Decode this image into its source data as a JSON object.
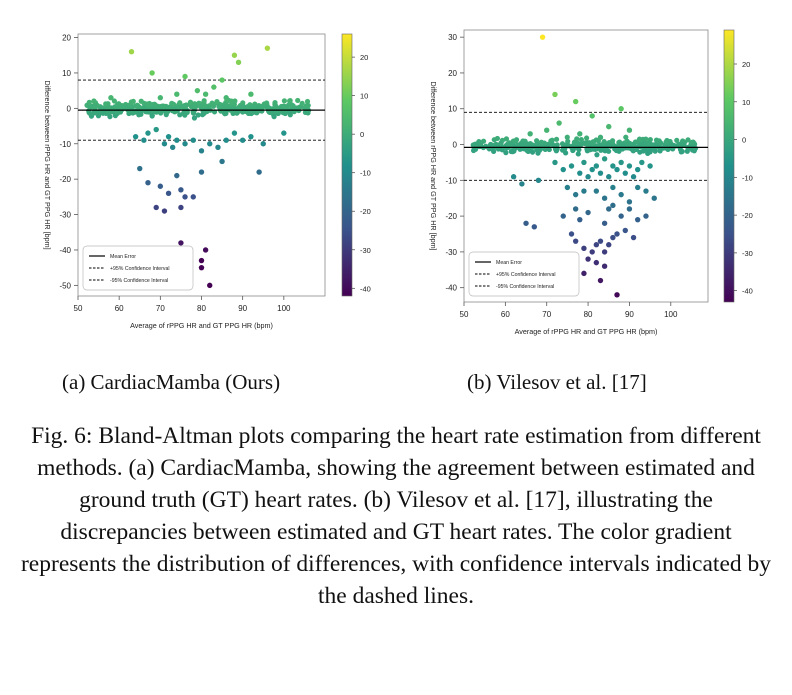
{
  "figure": {
    "caption": "Fig. 6: Bland-Altman plots comparing the heart rate estimation from different methods. (a) CardiacMamba, showing the agreement between estimated and ground truth (GT) heart rates. (b) Vilesov et al. [17], illustrating the discrepancies between estimated and GT heart rates. The color gradient represents the distribution of differences, with confidence intervals indicated by the dashed lines.",
    "subcaptions": [
      "(a) CardiacMamba (Ours)",
      "(b) Vilesov et al. [17]"
    ],
    "colormap": [
      "#440154",
      "#3b528b",
      "#21918c",
      "#5ec962",
      "#fde725"
    ]
  },
  "chart_data": [
    {
      "type": "scatter",
      "title": "",
      "xlabel": "Average of rPPG HR and  GT PPG HR (bpm)",
      "ylabel": "Difference between rPPG HR and GT PPG HR [bpm]",
      "xlim": [
        50,
        110
      ],
      "ylim": [
        -53,
        21
      ],
      "xticks": [
        50,
        60,
        70,
        80,
        90,
        100
      ],
      "yticks": [
        20,
        10,
        0,
        -10,
        -20,
        -30,
        -40,
        -50
      ],
      "mean_error": -0.5,
      "upper_ci": 8,
      "lower_ci": -9,
      "colorbar": {
        "range": [
          -42,
          26
        ],
        "ticks": [
          20,
          10,
          0,
          -10,
          -20,
          -30,
          -40
        ]
      },
      "legend": {
        "position": "bottom-left",
        "entries": [
          "Mean Error",
          "+95% Confidence Interval",
          "-95% Confidence Interval"
        ]
      },
      "cluster": {
        "count": 420,
        "x_range": [
          52,
          106
        ],
        "spread": 1.3
      },
      "points": [
        [
          63,
          16
        ],
        [
          68,
          10
        ],
        [
          76,
          9
        ],
        [
          88,
          15
        ],
        [
          89,
          13
        ],
        [
          96,
          17
        ],
        [
          85,
          8
        ],
        [
          79,
          5
        ],
        [
          81,
          4
        ],
        [
          83,
          6
        ],
        [
          86,
          3
        ],
        [
          92,
          4
        ],
        [
          74,
          4
        ],
        [
          70,
          3
        ],
        [
          58,
          3
        ],
        [
          64,
          -8
        ],
        [
          66,
          -9
        ],
        [
          67,
          -7
        ],
        [
          69,
          -6
        ],
        [
          71,
          -10
        ],
        [
          72,
          -8
        ],
        [
          73,
          -11
        ],
        [
          74,
          -9
        ],
        [
          76,
          -10
        ],
        [
          78,
          -9
        ],
        [
          80,
          -12
        ],
        [
          82,
          -10
        ],
        [
          84,
          -11
        ],
        [
          86,
          -9
        ],
        [
          88,
          -7
        ],
        [
          90,
          -9
        ],
        [
          92,
          -8
        ],
        [
          95,
          -10
        ],
        [
          100,
          -7
        ],
        [
          65,
          -17
        ],
        [
          67,
          -21
        ],
        [
          70,
          -22
        ],
        [
          72,
          -24
        ],
        [
          75,
          -23
        ],
        [
          76,
          -25
        ],
        [
          78,
          -25
        ],
        [
          74,
          -19
        ],
        [
          80,
          -18
        ],
        [
          85,
          -15
        ],
        [
          94,
          -18
        ],
        [
          69,
          -28
        ],
        [
          71,
          -29
        ],
        [
          75,
          -28
        ],
        [
          75,
          -38
        ],
        [
          81,
          -40
        ],
        [
          80,
          -43
        ],
        [
          80,
          -45
        ],
        [
          82,
          -50
        ]
      ]
    },
    {
      "type": "scatter",
      "title": "",
      "xlabel": "Average of rPPG HR and  GT PPG HR (bpm)",
      "ylabel": "Difference between rPPG HR and GT PPG HR [bpm]",
      "xlim": [
        50,
        109
      ],
      "ylim": [
        -44,
        32
      ],
      "xticks": [
        50,
        60,
        70,
        80,
        90,
        100
      ],
      "yticks": [
        30,
        20,
        10,
        0,
        -10,
        -20,
        -30,
        -40
      ],
      "mean_error": -0.8,
      "upper_ci": 9,
      "lower_ci": -10,
      "colorbar": {
        "range": [
          -43,
          29
        ],
        "ticks": [
          20,
          10,
          0,
          -10,
          -20,
          -30,
          -40
        ]
      },
      "legend": {
        "position": "bottom-left",
        "entries": [
          "Mean Error",
          "+95% Confidence Interval",
          "-95% Confidence Interval"
        ]
      },
      "cluster": {
        "count": 380,
        "x_range": [
          52,
          106
        ],
        "spread": 1.2
      },
      "points": [
        [
          69,
          30
        ],
        [
          72,
          14
        ],
        [
          77,
          12
        ],
        [
          88,
          10
        ],
        [
          81,
          8
        ],
        [
          73,
          6
        ],
        [
          70,
          4
        ],
        [
          85,
          5
        ],
        [
          66,
          3
        ],
        [
          90,
          4
        ],
        [
          78,
          3
        ],
        [
          83,
          2
        ],
        [
          72,
          -5
        ],
        [
          74,
          -7
        ],
        [
          76,
          -6
        ],
        [
          78,
          -8
        ],
        [
          79,
          -5
        ],
        [
          80,
          -9
        ],
        [
          81,
          -7
        ],
        [
          82,
          -6
        ],
        [
          83,
          -8
        ],
        [
          84,
          -4
        ],
        [
          85,
          -9
        ],
        [
          86,
          -6
        ],
        [
          87,
          -7
        ],
        [
          88,
          -5
        ],
        [
          89,
          -8
        ],
        [
          90,
          -6
        ],
        [
          91,
          -9
        ],
        [
          92,
          -7
        ],
        [
          93,
          -5
        ],
        [
          95,
          -6
        ],
        [
          62,
          -9
        ],
        [
          64,
          -11
        ],
        [
          68,
          -10
        ],
        [
          75,
          -12
        ],
        [
          77,
          -14
        ],
        [
          79,
          -13
        ],
        [
          82,
          -13
        ],
        [
          84,
          -15
        ],
        [
          86,
          -12
        ],
        [
          88,
          -14
        ],
        [
          90,
          -16
        ],
        [
          92,
          -12
        ],
        [
          94,
          -13
        ],
        [
          96,
          -15
        ],
        [
          65,
          -22
        ],
        [
          67,
          -23
        ],
        [
          74,
          -20
        ],
        [
          77,
          -18
        ],
        [
          78,
          -21
        ],
        [
          80,
          -19
        ],
        [
          84,
          -22
        ],
        [
          85,
          -18
        ],
        [
          86,
          -17
        ],
        [
          88,
          -20
        ],
        [
          90,
          -18
        ],
        [
          92,
          -21
        ],
        [
          94,
          -20
        ],
        [
          77,
          -27
        ],
        [
          79,
          -29
        ],
        [
          81,
          -30
        ],
        [
          82,
          -28
        ],
        [
          83,
          -27
        ],
        [
          84,
          -30
        ],
        [
          85,
          -28
        ],
        [
          86,
          -26
        ],
        [
          87,
          -25
        ],
        [
          89,
          -24
        ],
        [
          91,
          -26
        ],
        [
          80,
          -32
        ],
        [
          82,
          -33
        ],
        [
          84,
          -34
        ],
        [
          79,
          -36
        ],
        [
          83,
          -38
        ],
        [
          87,
          -42
        ],
        [
          73,
          -35
        ],
        [
          76,
          -25
        ]
      ]
    }
  ]
}
